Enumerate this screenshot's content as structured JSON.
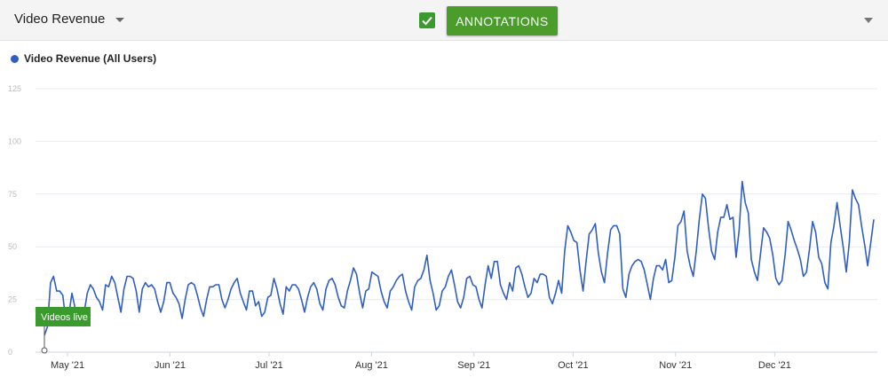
{
  "toolbar": {
    "metric_label": "Video Revenue",
    "annotations_checked": true,
    "annotations_label": "ANNOTATIONS"
  },
  "colors": {
    "series": "#2f5ec4",
    "accent": "#4a9d2a",
    "annotation": "#3a9a2e"
  },
  "icons": {
    "metric_dropdown": "caret-down-icon",
    "checkbox": "checkmark-icon",
    "menu": "caret-down-icon"
  },
  "chart_data": {
    "type": "line",
    "title": "",
    "xlabel": "",
    "ylabel": "",
    "legend": "top-left",
    "grid": true,
    "ylim": [
      0,
      125
    ],
    "y_ticks": [
      {
        "value": 0,
        "label": "0"
      },
      {
        "value": 25,
        "label": "25"
      },
      {
        "value": 50,
        "label": "50"
      },
      {
        "value": 75,
        "label": "75"
      },
      {
        "value": 100,
        "label": "100"
      },
      {
        "value": 125,
        "label": "125"
      }
    ],
    "x_ticks": [
      {
        "date": "2021-05-01",
        "label": "May '21"
      },
      {
        "date": "2021-06-01",
        "label": "Jun '21"
      },
      {
        "date": "2021-07-01",
        "label": "Jul '21"
      },
      {
        "date": "2021-08-01",
        "label": "Aug '21"
      },
      {
        "date": "2021-09-01",
        "label": "Sep '21"
      },
      {
        "date": "2021-10-01",
        "label": "Oct '21"
      },
      {
        "date": "2021-11-01",
        "label": "Nov '21"
      },
      {
        "date": "2021-12-01",
        "label": "Dec '21"
      }
    ],
    "annotations": [
      {
        "date": "2021-04-24",
        "label": "Videos live"
      }
    ],
    "series": [
      {
        "name": "Video Revenue (All Users)",
        "x_start": "2021-04-24",
        "x_end": "2021-12-31",
        "values": [
          8,
          12,
          33,
          36,
          29,
          29,
          27,
          15,
          18,
          28,
          21,
          20,
          15,
          19,
          28,
          32,
          30,
          26,
          24,
          20,
          32,
          31,
          36,
          33,
          26,
          19,
          30,
          36,
          36,
          35,
          29,
          19,
          30,
          33,
          31,
          32,
          30,
          24,
          19,
          24,
          33,
          33,
          28,
          26,
          23,
          16,
          25,
          32,
          33,
          32,
          27,
          21,
          17,
          25,
          31,
          31,
          32,
          32,
          25,
          21,
          25,
          30,
          33,
          35,
          28,
          24,
          20,
          29,
          29,
          22,
          24,
          17,
          19,
          26,
          27,
          35,
          30,
          23,
          18,
          31,
          29,
          32,
          32,
          30,
          25,
          19,
          26,
          31,
          33,
          30,
          23,
          20,
          30,
          34,
          35,
          32,
          26,
          22,
          21,
          29,
          34,
          40,
          37,
          28,
          21,
          29,
          30,
          38,
          37,
          36,
          29,
          24,
          21,
          29,
          31,
          34,
          36,
          37,
          29,
          24,
          20,
          31,
          34,
          35,
          39,
          46,
          34,
          28,
          20,
          22,
          29,
          31,
          36,
          39,
          32,
          24,
          21,
          26,
          35,
          36,
          32,
          31,
          25,
          21,
          32,
          41,
          35,
          43,
          43,
          32,
          28,
          25,
          33,
          29,
          40,
          41,
          37,
          31,
          26,
          28,
          35,
          33,
          37,
          37,
          36,
          26,
          23,
          28,
          34,
          28,
          48,
          60,
          57,
          53,
          52,
          39,
          29,
          43,
          56,
          58,
          61,
          47,
          38,
          33,
          47,
          58,
          60,
          60,
          56,
          30,
          26,
          37,
          41,
          43,
          44,
          43,
          39,
          32,
          25,
          35,
          41,
          41,
          39,
          44,
          33,
          34,
          45,
          60,
          62,
          67,
          48,
          41,
          36,
          48,
          63,
          75,
          73,
          59,
          48,
          44,
          57,
          64,
          64,
          70,
          63,
          64,
          45,
          58,
          81,
          71,
          66,
          44,
          38,
          34,
          47,
          59,
          57,
          54,
          46,
          35,
          32,
          34,
          46,
          62,
          58,
          53,
          49,
          44,
          36,
          38,
          49,
          62,
          57,
          45,
          42,
          33,
          30,
          52,
          60,
          71,
          60,
          50,
          38,
          52,
          77,
          73,
          70,
          60,
          51,
          41,
          52,
          63
        ]
      }
    ]
  }
}
